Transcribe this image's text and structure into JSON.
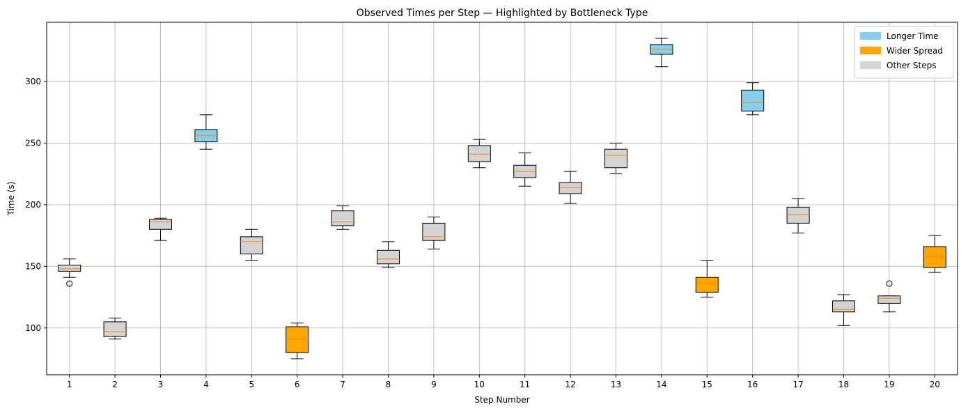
{
  "chart_data": {
    "type": "box",
    "title": "Observed Times per Step — Highlighted by Bottleneck Type",
    "xlabel": "Step Number",
    "ylabel": "Time (s)",
    "ylim": [
      62,
      348
    ],
    "yticks": [
      100,
      150,
      200,
      250,
      300
    ],
    "grid": true,
    "legend_position": "top-right",
    "legend": [
      {
        "label": "Longer Time",
        "color": "#87ceeb"
      },
      {
        "label": "Wider Spread",
        "color": "#ffa500"
      },
      {
        "label": "Other Steps",
        "color": "#d3d3d3"
      }
    ],
    "median_color": "#ff7f0e",
    "series": [
      {
        "step": "1",
        "category": "Other Steps",
        "whisker_low": 141,
        "q1": 146,
        "median": 148,
        "q3": 151,
        "whisker_high": 156,
        "outliers": [
          136
        ]
      },
      {
        "step": "2",
        "category": "Other Steps",
        "whisker_low": 91,
        "q1": 93,
        "median": 97,
        "q3": 105,
        "whisker_high": 108,
        "outliers": []
      },
      {
        "step": "3",
        "category": "Other Steps",
        "whisker_low": 171,
        "q1": 180,
        "median": 186,
        "q3": 188,
        "whisker_high": 189,
        "outliers": []
      },
      {
        "step": "4",
        "category": "Longer Time",
        "whisker_low": 245,
        "q1": 251,
        "median": 256,
        "q3": 261,
        "whisker_high": 273,
        "outliers": []
      },
      {
        "step": "5",
        "category": "Other Steps",
        "whisker_low": 155,
        "q1": 160,
        "median": 170,
        "q3": 174,
        "whisker_high": 180,
        "outliers": []
      },
      {
        "step": "6",
        "category": "Wider Spread",
        "whisker_low": 75,
        "q1": 80,
        "median": 91,
        "q3": 101,
        "whisker_high": 104,
        "outliers": []
      },
      {
        "step": "7",
        "category": "Other Steps",
        "whisker_low": 180,
        "q1": 183,
        "median": 186,
        "q3": 195,
        "whisker_high": 199,
        "outliers": []
      },
      {
        "step": "8",
        "category": "Other Steps",
        "whisker_low": 149,
        "q1": 152,
        "median": 156,
        "q3": 163,
        "whisker_high": 170,
        "outliers": []
      },
      {
        "step": "9",
        "category": "Other Steps",
        "whisker_low": 164,
        "q1": 171,
        "median": 174,
        "q3": 185,
        "whisker_high": 190,
        "outliers": []
      },
      {
        "step": "10",
        "category": "Other Steps",
        "whisker_low": 230,
        "q1": 235,
        "median": 241,
        "q3": 248,
        "whisker_high": 253,
        "outliers": []
      },
      {
        "step": "11",
        "category": "Other Steps",
        "whisker_low": 215,
        "q1": 222,
        "median": 227,
        "q3": 232,
        "whisker_high": 242,
        "outliers": []
      },
      {
        "step": "12",
        "category": "Other Steps",
        "whisker_low": 201,
        "q1": 209,
        "median": 214,
        "q3": 218,
        "whisker_high": 227,
        "outliers": []
      },
      {
        "step": "13",
        "category": "Other Steps",
        "whisker_low": 225,
        "q1": 230,
        "median": 240,
        "q3": 245,
        "whisker_high": 250,
        "outliers": []
      },
      {
        "step": "14",
        "category": "Longer Time",
        "whisker_low": 312,
        "q1": 322,
        "median": 326,
        "q3": 330,
        "whisker_high": 335,
        "outliers": []
      },
      {
        "step": "15",
        "category": "Wider Spread",
        "whisker_low": 125,
        "q1": 129,
        "median": 136,
        "q3": 141,
        "whisker_high": 155,
        "outliers": []
      },
      {
        "step": "16",
        "category": "Longer Time",
        "whisker_low": 273,
        "q1": 276,
        "median": 283,
        "q3": 293,
        "whisker_high": 299,
        "outliers": []
      },
      {
        "step": "17",
        "category": "Other Steps",
        "whisker_low": 177,
        "q1": 185,
        "median": 192,
        "q3": 198,
        "whisker_high": 205,
        "outliers": []
      },
      {
        "step": "18",
        "category": "Other Steps",
        "whisker_low": 102,
        "q1": 113,
        "median": 115,
        "q3": 122,
        "whisker_high": 127,
        "outliers": []
      },
      {
        "step": "19",
        "category": "Other Steps",
        "whisker_low": 113,
        "q1": 120,
        "median": 124,
        "q3": 126,
        "whisker_high": 126,
        "outliers": [
          136
        ]
      },
      {
        "step": "20",
        "category": "Wider Spread",
        "whisker_low": 145,
        "q1": 149,
        "median": 158,
        "q3": 166,
        "whisker_high": 175,
        "outliers": []
      }
    ]
  }
}
